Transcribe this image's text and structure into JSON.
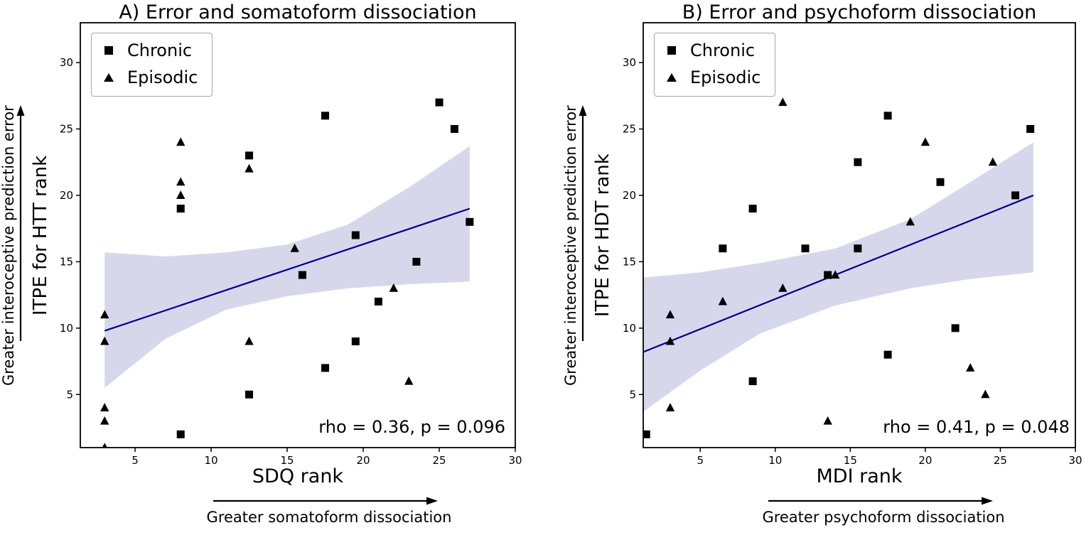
{
  "figure": {
    "background": "#ffffff"
  },
  "chart_data": [
    {
      "type": "scatter",
      "panel": "A",
      "title": "A) Error and somatoform dissociation",
      "xlabel": "SDQ rank",
      "ylabel": "ITPE for HTT rank",
      "x_arrow_label": "Greater somatoform dissociation",
      "y_arrow_label": "Greater interoceptive prediction error",
      "annotation": "rho = 0.36, p = 0.096",
      "rho": 0.36,
      "p_value": 0.096,
      "xlim": [
        1.4,
        30
      ],
      "ylim": [
        1,
        33
      ],
      "xticks": [
        5,
        10,
        15,
        20,
        25,
        30
      ],
      "yticks": [
        5,
        10,
        15,
        20,
        25,
        30
      ],
      "grid": false,
      "legend_position": "upper-left",
      "legend": [
        {
          "marker": "square",
          "label": "Chronic"
        },
        {
          "marker": "triangle",
          "label": "Episodic"
        }
      ],
      "series": [
        {
          "name": "Chronic",
          "marker": "square",
          "color": "#000000",
          "points": [
            [
              8,
              2
            ],
            [
              8,
              19
            ],
            [
              12.5,
              5
            ],
            [
              12.5,
              23
            ],
            [
              16,
              14
            ],
            [
              17.5,
              7
            ],
            [
              17.5,
              26
            ],
            [
              19.5,
              9
            ],
            [
              19.5,
              17
            ],
            [
              21,
              12
            ],
            [
              23.5,
              15
            ],
            [
              25,
              27
            ],
            [
              26,
              25
            ],
            [
              27,
              18
            ]
          ]
        },
        {
          "name": "Episodic",
          "marker": "triangle",
          "color": "#000000",
          "points": [
            [
              3,
              1
            ],
            [
              3,
              3
            ],
            [
              3,
              4
            ],
            [
              3,
              9
            ],
            [
              3,
              11
            ],
            [
              8,
              20
            ],
            [
              8,
              21
            ],
            [
              8,
              24
            ],
            [
              12.5,
              9
            ],
            [
              12.5,
              22
            ],
            [
              15.5,
              16
            ],
            [
              22,
              13
            ],
            [
              23,
              6
            ]
          ]
        }
      ],
      "regression": {
        "x": [
          3,
          27
        ],
        "y": [
          9.8,
          19.0
        ],
        "color": "#00008b"
      },
      "band": {
        "x": [
          3,
          7,
          11,
          15,
          19,
          23,
          27
        ],
        "upper": [
          15.7,
          15.4,
          15.7,
          16.3,
          17.8,
          20.6,
          23.7
        ],
        "lower": [
          5.5,
          9.2,
          11.4,
          12.4,
          13.0,
          13.3,
          13.5
        ],
        "color": "#7a7ac0",
        "opacity": 0.3
      }
    },
    {
      "type": "scatter",
      "panel": "B",
      "title": "B) Error and psychoform dissociation",
      "xlabel": "MDI rank",
      "ylabel": "ITPE for HDT rank",
      "x_arrow_label": "Greater psychoform dissociation",
      "y_arrow_label": "Greater interoceptive prediction error",
      "annotation": "rho = 0.41, p = 0.048",
      "rho": 0.41,
      "p_value": 0.048,
      "xlim": [
        1.2,
        30
      ],
      "ylim": [
        1,
        33
      ],
      "xticks": [
        5,
        10,
        15,
        20,
        25,
        30
      ],
      "yticks": [
        5,
        10,
        15,
        20,
        25,
        30
      ],
      "grid": false,
      "legend_position": "upper-left",
      "legend": [
        {
          "marker": "square",
          "label": "Chronic"
        },
        {
          "marker": "triangle",
          "label": "Episodic"
        }
      ],
      "series": [
        {
          "name": "Chronic",
          "marker": "square",
          "color": "#000000",
          "points": [
            [
              1.4,
              2
            ],
            [
              6.5,
              16
            ],
            [
              8.5,
              6
            ],
            [
              8.5,
              19
            ],
            [
              12,
              16
            ],
            [
              13.5,
              14
            ],
            [
              15.5,
              16
            ],
            [
              15.5,
              22.5
            ],
            [
              17.5,
              8
            ],
            [
              17.5,
              26
            ],
            [
              21,
              21
            ],
            [
              22,
              10
            ],
            [
              26,
              20
            ],
            [
              27,
              25
            ]
          ]
        },
        {
          "name": "Episodic",
          "marker": "triangle",
          "color": "#000000",
          "points": [
            [
              3,
              4
            ],
            [
              3,
              9
            ],
            [
              3,
              11
            ],
            [
              6.5,
              12
            ],
            [
              10.5,
              13
            ],
            [
              10.5,
              27
            ],
            [
              13.5,
              3
            ],
            [
              14,
              14
            ],
            [
              19,
              18
            ],
            [
              20,
              24
            ],
            [
              23,
              7
            ],
            [
              24,
              5
            ],
            [
              24.5,
              22.5
            ]
          ]
        }
      ],
      "regression": {
        "x": [
          1.2,
          27.2
        ],
        "y": [
          8.2,
          20.0
        ],
        "color": "#00008b"
      },
      "band": {
        "x": [
          1.2,
          5,
          9,
          14,
          19,
          23,
          27.2
        ],
        "upper": [
          13.8,
          14.2,
          14.9,
          16.0,
          18.2,
          21.0,
          24.0
        ],
        "lower": [
          3.7,
          6.8,
          9.6,
          11.7,
          13.0,
          13.7,
          14.2
        ],
        "color": "#7a7ac0",
        "opacity": 0.3
      }
    }
  ]
}
